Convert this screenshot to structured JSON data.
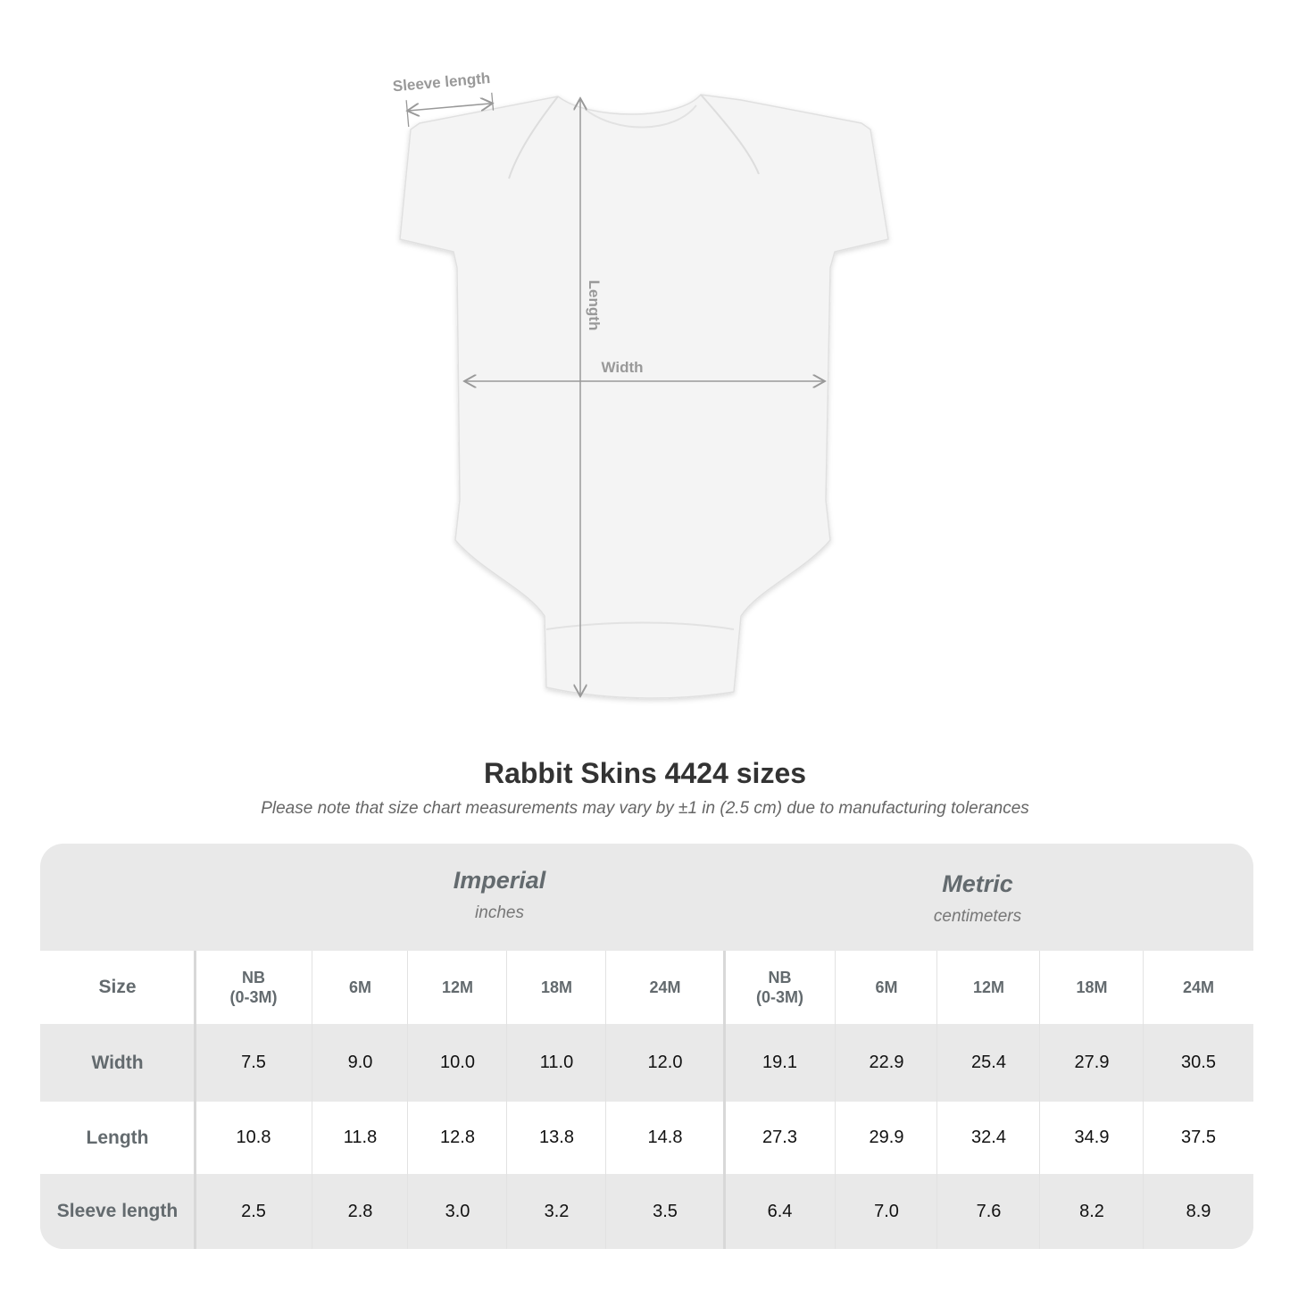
{
  "diagram": {
    "labels": {
      "sleeve": "Sleeve length",
      "length": "Length",
      "width": "Width"
    }
  },
  "title": "Rabbit Skins 4424 sizes",
  "note": "Please note that size chart measurements may vary by ±1 in (2.5 cm) due to manufacturing tolerances",
  "table": {
    "groups": [
      {
        "name": "Imperial",
        "unit": "inches"
      },
      {
        "name": "Metric",
        "unit": "centimeters"
      }
    ],
    "size_label": "Size",
    "sizes": [
      "NB\n(0-3M)",
      "6M",
      "12M",
      "18M",
      "24M",
      "NB\n(0-3M)",
      "6M",
      "12M",
      "18M",
      "24M"
    ],
    "rows": [
      {
        "label": "Width",
        "values": [
          "7.5",
          "9.0",
          "10.0",
          "11.0",
          "12.0",
          "19.1",
          "22.9",
          "25.4",
          "27.9",
          "30.5"
        ]
      },
      {
        "label": "Length",
        "values": [
          "10.8",
          "11.8",
          "12.8",
          "13.8",
          "14.8",
          "27.3",
          "29.9",
          "32.4",
          "34.9",
          "37.5"
        ]
      },
      {
        "label": "Sleeve length",
        "values": [
          "2.5",
          "2.8",
          "3.0",
          "3.2",
          "3.5",
          "6.4",
          "7.0",
          "7.6",
          "8.2",
          "8.9"
        ]
      }
    ]
  },
  "colors": {
    "header_bg": "#e9e9e9",
    "label_text": "#636a6e",
    "measure_line": "#999999"
  }
}
